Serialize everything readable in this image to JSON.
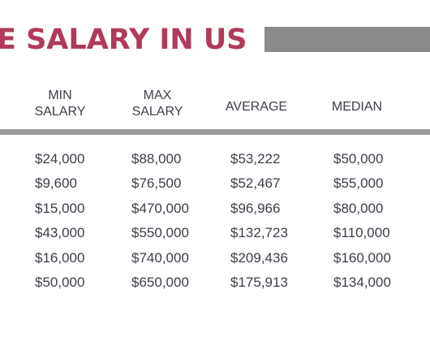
{
  "title": "E SALARY IN US",
  "columns": {
    "min": [
      "MIN",
      "SALARY"
    ],
    "max": [
      "MAX",
      "SALARY"
    ],
    "average": "AVERAGE",
    "median": "MEDIAN"
  },
  "rows": [
    [
      "$24,000",
      "$88,000",
      "$53,222",
      "$50,000"
    ],
    [
      "$9,600",
      "$76,500",
      "$52,467",
      "$55,000"
    ],
    [
      "$15,000",
      "$470,000",
      "$96,966",
      "$80,000"
    ],
    [
      "$43,000",
      "$550,000",
      "$132,723",
      "$110,000"
    ],
    [
      "$16,000",
      "$740,000",
      "$209,436",
      "$160,000"
    ],
    [
      "$50,000",
      "$650,000",
      "$175,913",
      "$134,000"
    ]
  ],
  "colors": {
    "title": "#b03a59",
    "title_bar": "#8a8a8c",
    "rule": "#9a9a9c",
    "text": "#3d3d4a"
  }
}
